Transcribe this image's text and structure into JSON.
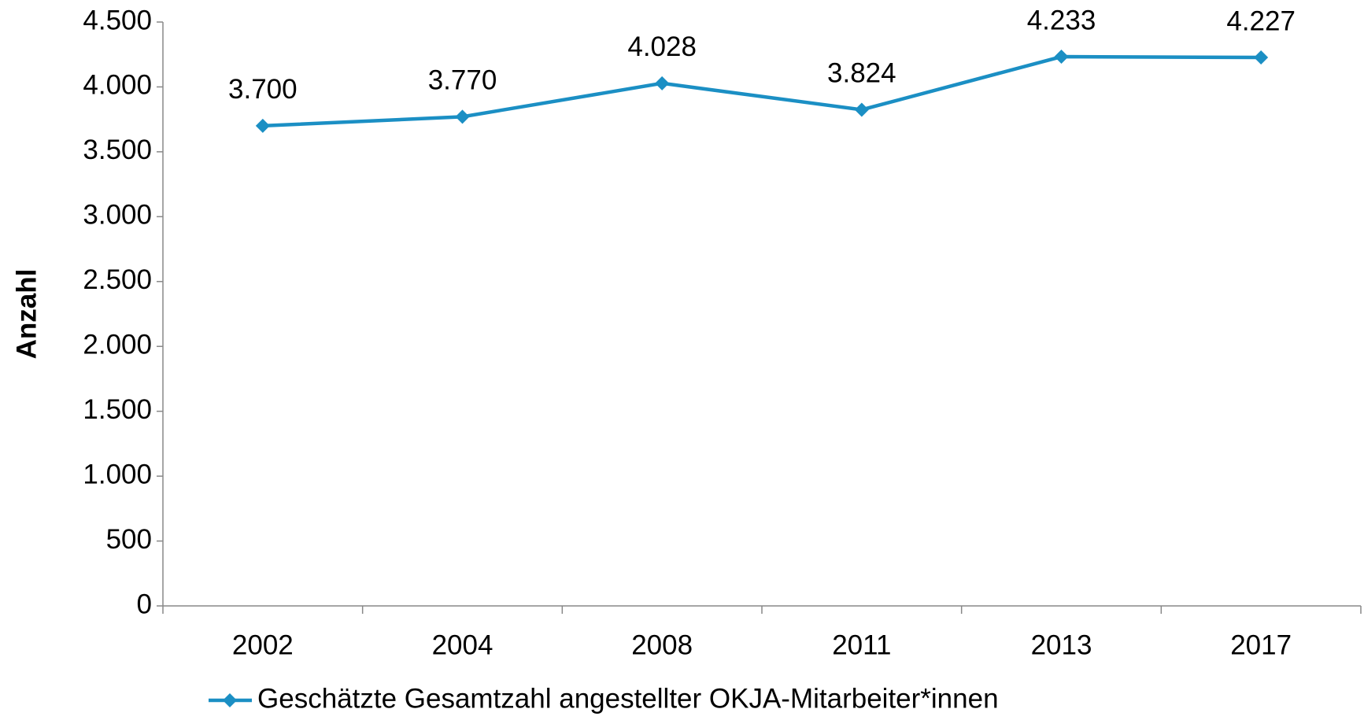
{
  "chart_data": {
    "type": "line",
    "y_label": "Anzahl",
    "categories": [
      "2002",
      "2004",
      "2008",
      "2011",
      "2013",
      "2017"
    ],
    "series": [
      {
        "name": "Geschätzte Gesamtzahl angestellter OKJA-Mitarbeiter*innen",
        "color": "#1b8fc4",
        "values": [
          3700,
          3770,
          4028,
          3824,
          4233,
          4227
        ],
        "value_labels": [
          "3.700",
          "3.770",
          "4.028",
          "3.824",
          "4.233",
          "4.227"
        ]
      }
    ],
    "ylim": [
      0,
      4500
    ],
    "yticks": [
      0,
      500,
      {
        "value": 1000,
        "label": "1.000"
      },
      {
        "value": 1500,
        "label": "1.500"
      },
      {
        "value": 2000,
        "label": "2.000"
      },
      {
        "value": 2500,
        "label": "2.500"
      },
      {
        "value": 3000,
        "label": "3.000"
      },
      {
        "value": 3500,
        "label": "3.500"
      },
      {
        "value": 4000,
        "label": "4.000"
      },
      {
        "value": 4500,
        "label": "4.500"
      }
    ],
    "legend": "bottom"
  }
}
